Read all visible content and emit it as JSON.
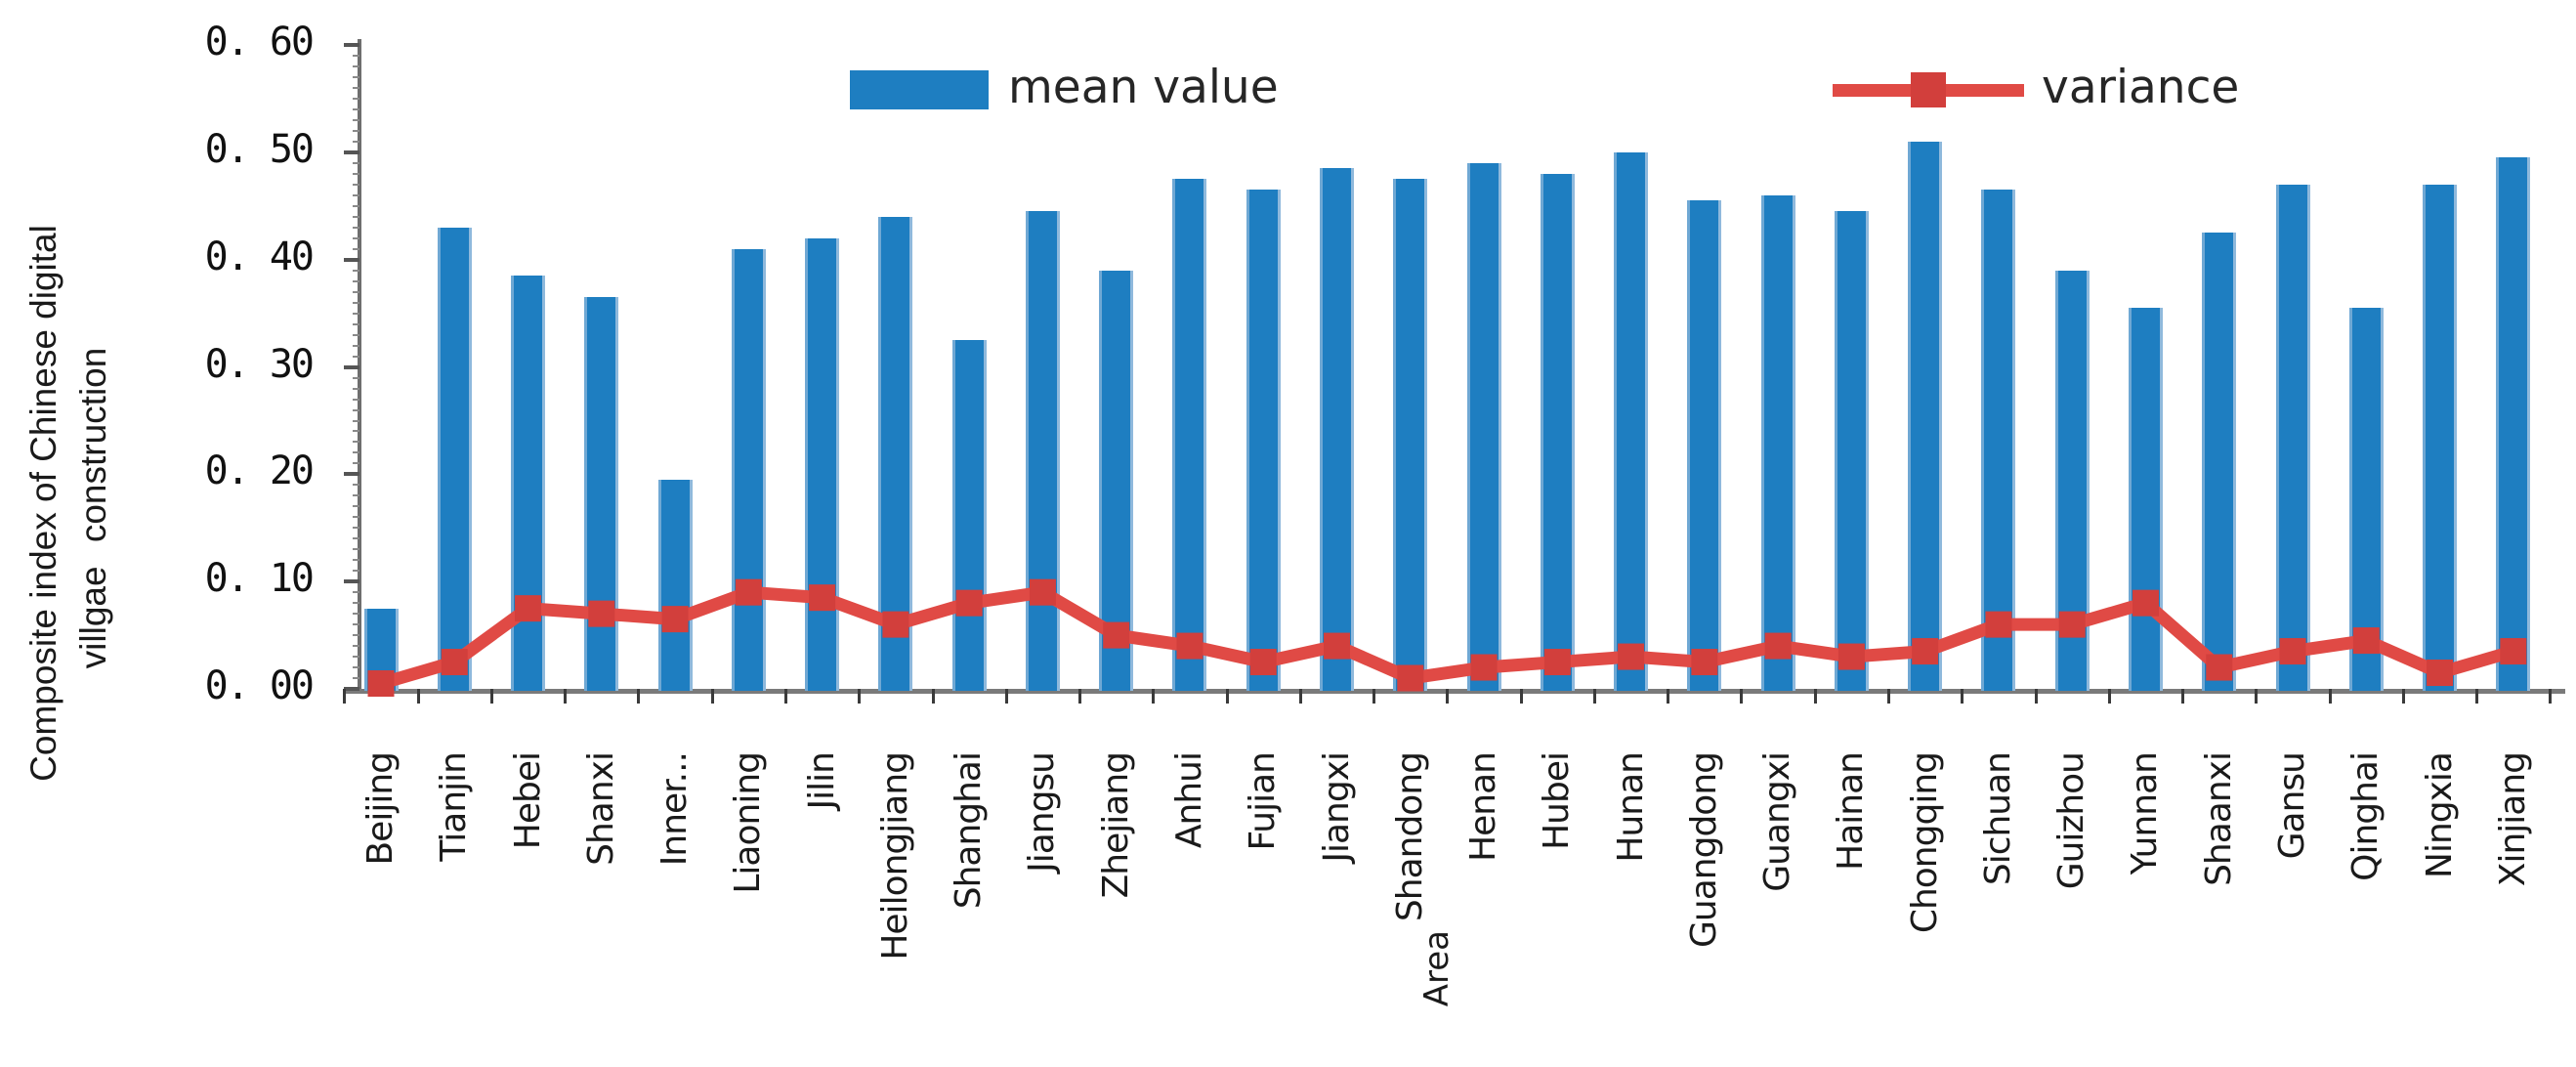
{
  "chart_data": {
    "type": "bar",
    "combo": "bar series with overlaid line series",
    "title": "",
    "xlabel": "Area",
    "ylabel": "Composite index of Chinese digital villgae construction",
    "ylabel_line1": "Composite index of Chinese digital",
    "ylabel_line2": "villgae construction",
    "ylim": [
      0.0,
      0.6
    ],
    "ytick_step": 0.1,
    "ytick_labels": [
      "0. 00",
      "0. 10",
      "0. 20",
      "0. 30",
      "0. 40",
      "0. 50",
      "0. 60"
    ],
    "grid": false,
    "legend_position": "top",
    "categories": [
      "Beijing",
      "Tianjin",
      "Hebei",
      "Shanxi",
      "Inner...",
      "Liaoning",
      "Jilin",
      "Heilongjiang",
      "Shanghai",
      "Jiangsu",
      "Zhejiang",
      "Anhui",
      "Fujian",
      "Jiangxi",
      "Shandong",
      "Henan",
      "Hubei",
      "Hunan",
      "Guangdong",
      "Guangxi",
      "Hainan",
      "Chongqing",
      "Sichuan",
      "Guizhou",
      "Yunnan",
      "Shaanxi",
      "Gansu",
      "Qinghai",
      "Ningxia",
      "Xinjiang"
    ],
    "series": [
      {
        "name": "mean value",
        "type": "bar",
        "color": "#1E7EC1",
        "values": [
          0.075,
          0.43,
          0.385,
          0.365,
          0.195,
          0.41,
          0.42,
          0.44,
          0.325,
          0.445,
          0.39,
          0.475,
          0.465,
          0.485,
          0.475,
          0.49,
          0.48,
          0.5,
          0.455,
          0.46,
          0.445,
          0.51,
          0.465,
          0.39,
          0.355,
          0.425,
          0.47,
          0.355,
          0.47,
          0.495
        ]
      },
      {
        "name": "variance",
        "type": "line",
        "color": "#E04A45",
        "marker": "square",
        "marker_color": "#D23F3C",
        "values": [
          0.005,
          0.025,
          0.075,
          0.07,
          0.065,
          0.09,
          0.085,
          0.06,
          0.08,
          0.09,
          0.05,
          0.04,
          0.025,
          0.04,
          0.01,
          0.02,
          0.025,
          0.03,
          0.025,
          0.04,
          0.03,
          0.035,
          0.06,
          0.06,
          0.08,
          0.02,
          0.035,
          0.045,
          0.015,
          0.035
        ]
      }
    ]
  }
}
